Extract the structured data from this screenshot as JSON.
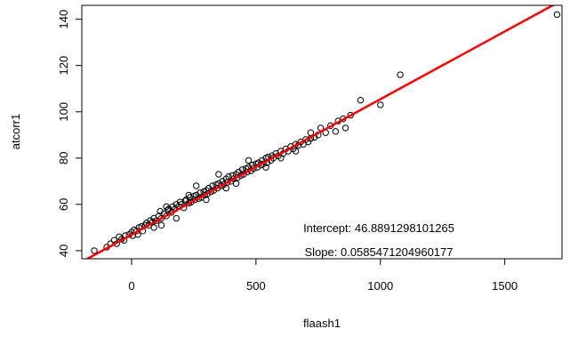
{
  "chart_data": {
    "type": "scatter",
    "title": "",
    "xlabel": "flaash1",
    "ylabel": "atcorr1",
    "xlim": [
      -200,
      1730
    ],
    "ylim": [
      36.5,
      146
    ],
    "xticks": [
      0,
      500,
      1000,
      1500
    ],
    "yticks": [
      40,
      60,
      80,
      100,
      120,
      140
    ],
    "grid": false,
    "point_color": "#000000",
    "line_color": "#ff0000",
    "regression": {
      "intercept": 46.8891298101265,
      "slope": 0.0585471204960177
    },
    "annotations": [
      "Intercept: 46.8891298101265",
      "Slope: 0.0585471204960177"
    ],
    "series": [
      {
        "points": [
          [
            -150,
            40
          ],
          [
            -100,
            41.5
          ],
          [
            -85,
            43
          ],
          [
            -70,
            44.5
          ],
          [
            -60,
            43
          ],
          [
            -50,
            46
          ],
          [
            -40,
            45
          ],
          [
            -30,
            44.5
          ],
          [
            -25,
            46.5
          ],
          [
            -10,
            47
          ],
          [
            0,
            48
          ],
          [
            5,
            46.5
          ],
          [
            10,
            49
          ],
          [
            20,
            48.5
          ],
          [
            25,
            47
          ],
          [
            30,
            50
          ],
          [
            40,
            50.5
          ],
          [
            45,
            48.5
          ],
          [
            55,
            51
          ],
          [
            60,
            52
          ],
          [
            70,
            51
          ],
          [
            75,
            53
          ],
          [
            85,
            52.5
          ],
          [
            90,
            54
          ],
          [
            100,
            53
          ],
          [
            110,
            55
          ],
          [
            115,
            57
          ],
          [
            120,
            54
          ],
          [
            130,
            56
          ],
          [
            140,
            55
          ],
          [
            145,
            57.5
          ],
          [
            150,
            58
          ],
          [
            160,
            56.5
          ],
          [
            165,
            59
          ],
          [
            175,
            58
          ],
          [
            180,
            60
          ],
          [
            190,
            59
          ],
          [
            195,
            61
          ],
          [
            200,
            60
          ],
          [
            210,
            58.5
          ],
          [
            215,
            61.5
          ],
          [
            220,
            62
          ],
          [
            230,
            60.5
          ],
          [
            235,
            63
          ],
          [
            240,
            61
          ],
          [
            250,
            63.5
          ],
          [
            255,
            62
          ],
          [
            260,
            64
          ],
          [
            270,
            62.5
          ],
          [
            275,
            65
          ],
          [
            280,
            63
          ],
          [
            290,
            65.5
          ],
          [
            295,
            64
          ],
          [
            300,
            66
          ],
          [
            305,
            64.5
          ],
          [
            310,
            67
          ],
          [
            320,
            65.5
          ],
          [
            325,
            68
          ],
          [
            330,
            66
          ],
          [
            340,
            68.5
          ],
          [
            345,
            67
          ],
          [
            350,
            69
          ],
          [
            360,
            68
          ],
          [
            365,
            70
          ],
          [
            370,
            68.5
          ],
          [
            380,
            71
          ],
          [
            385,
            69.5
          ],
          [
            390,
            72
          ],
          [
            400,
            70
          ],
          [
            405,
            72.5
          ],
          [
            410,
            71
          ],
          [
            420,
            73
          ],
          [
            425,
            71.5
          ],
          [
            430,
            74
          ],
          [
            440,
            72.5
          ],
          [
            445,
            75
          ],
          [
            450,
            73
          ],
          [
            460,
            75.5
          ],
          [
            465,
            74
          ],
          [
            470,
            76
          ],
          [
            480,
            74.5
          ],
          [
            485,
            77
          ],
          [
            490,
            75.5
          ],
          [
            500,
            77.5
          ],
          [
            505,
            76
          ],
          [
            510,
            78
          ],
          [
            520,
            77
          ],
          [
            525,
            79
          ],
          [
            530,
            77.5
          ],
          [
            540,
            80
          ],
          [
            545,
            78
          ],
          [
            550,
            80.5
          ],
          [
            560,
            79
          ],
          [
            565,
            81
          ],
          [
            570,
            80
          ],
          [
            580,
            82
          ],
          [
            590,
            81
          ],
          [
            600,
            83
          ],
          [
            610,
            82
          ],
          [
            620,
            84
          ],
          [
            630,
            83
          ],
          [
            640,
            85
          ],
          [
            650,
            84
          ],
          [
            660,
            86
          ],
          [
            670,
            85.5
          ],
          [
            680,
            87
          ],
          [
            690,
            86
          ],
          [
            700,
            88
          ],
          [
            710,
            87
          ],
          [
            720,
            88.5
          ],
          [
            735,
            89
          ],
          [
            750,
            90
          ],
          [
            760,
            93
          ],
          [
            780,
            91
          ],
          [
            800,
            94
          ],
          [
            820,
            91.5
          ],
          [
            830,
            96
          ],
          [
            850,
            97
          ],
          [
            860,
            93
          ],
          [
            880,
            98.5
          ],
          [
            920,
            105
          ],
          [
            1000,
            103
          ],
          [
            1080,
            116
          ],
          [
            1710,
            142
          ],
          [
            260,
            68
          ],
          [
            300,
            62
          ],
          [
            350,
            73
          ],
          [
            180,
            54
          ],
          [
            140,
            59
          ],
          [
            420,
            69
          ],
          [
            470,
            79
          ],
          [
            540,
            76
          ],
          [
            600,
            80
          ],
          [
            660,
            83
          ],
          [
            720,
            91
          ],
          [
            380,
            67
          ],
          [
            230,
            64
          ],
          [
            120,
            51
          ],
          [
            90,
            50
          ]
        ]
      }
    ]
  }
}
